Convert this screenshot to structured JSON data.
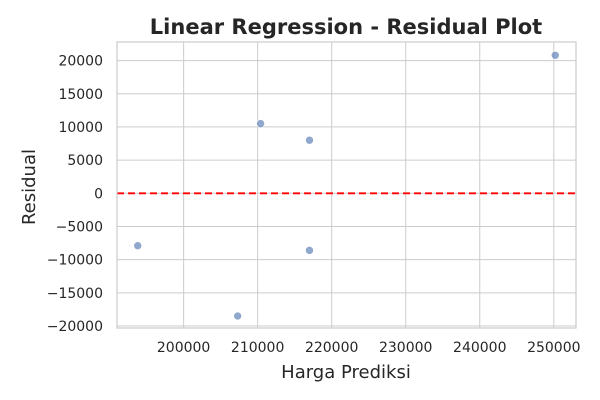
{
  "chart_data": {
    "type": "scatter",
    "title": "Linear Regression - Residual Plot",
    "xlabel": "Harga Prediksi",
    "ylabel": "Residual",
    "xlim": [
      191000,
      253000
    ],
    "ylim": [
      -20300,
      22800
    ],
    "xticks": [
      200000,
      210000,
      220000,
      230000,
      240000,
      250000
    ],
    "yticks": [
      -20000,
      -15000,
      -10000,
      -5000,
      0,
      5000,
      10000,
      15000,
      20000
    ],
    "grid": true,
    "reference_line": {
      "y": 0,
      "color": "#ff0000",
      "style": "dashed"
    },
    "point_color": "#4c72b0",
    "series": [
      {
        "points": [
          {
            "x": 250200,
            "y": 20800
          },
          {
            "x": 210400,
            "y": 10500
          },
          {
            "x": 217000,
            "y": 8000
          },
          {
            "x": 193800,
            "y": -7900
          },
          {
            "x": 217000,
            "y": -8600
          },
          {
            "x": 207300,
            "y": -18500
          }
        ]
      }
    ]
  }
}
